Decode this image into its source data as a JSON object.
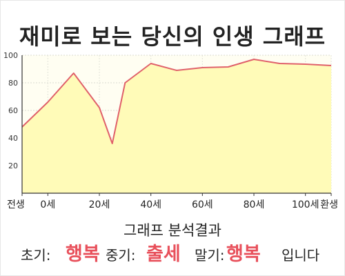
{
  "chart_data": {
    "type": "area",
    "title": "재미로 보는 당신의 인생 그래프",
    "x": [
      -10,
      0,
      10,
      20,
      25,
      30,
      40,
      50,
      55,
      60,
      70,
      80,
      90,
      100,
      110
    ],
    "y": [
      48,
      66,
      87,
      62,
      36,
      80,
      94,
      89,
      90,
      91,
      91.5,
      97,
      94,
      93.5,
      92.5
    ],
    "xticks": [
      {
        "x": -10,
        "label": "전생"
      },
      {
        "x": 0,
        "label": "0세"
      },
      {
        "x": 20,
        "label": "20세"
      },
      {
        "x": 40,
        "label": "40세"
      },
      {
        "x": 60,
        "label": "60세"
      },
      {
        "x": 80,
        "label": "80세"
      },
      {
        "x": 100,
        "label": "100세"
      },
      {
        "x": 110,
        "label": "환생"
      }
    ],
    "yticks": [
      20,
      40,
      60,
      80,
      100
    ],
    "xlim": [
      -10,
      110
    ],
    "ylim": [
      0,
      100
    ],
    "grid": true,
    "line_color": "#e0606a",
    "fill_color": "#fffbb8",
    "plot_bg": "#fffef2"
  },
  "analysis": {
    "heading": "그래프 분석결과",
    "early_label": "초기:",
    "early_value": "행복",
    "middle_label": "중기:",
    "middle_value": "출세",
    "late_label": "말기:",
    "late_value": "행복",
    "suffix": "입니다"
  }
}
